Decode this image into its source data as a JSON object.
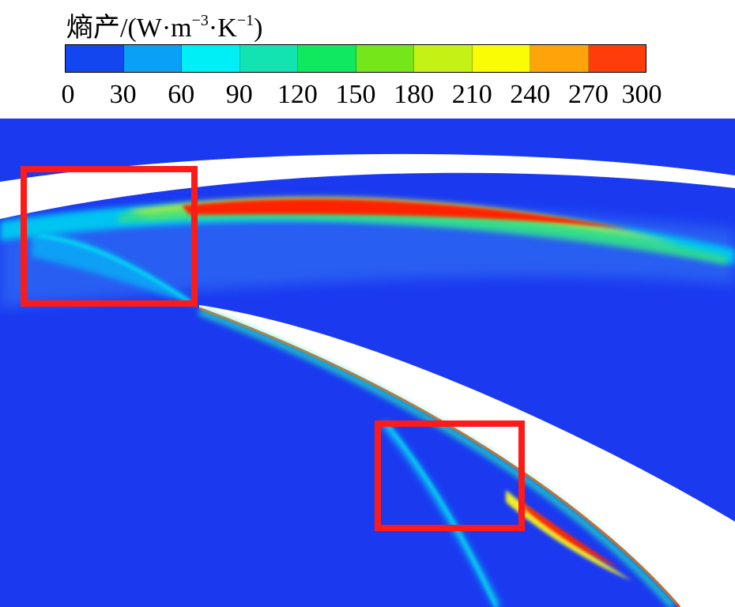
{
  "legend": {
    "title_main": "熵产/(W·m",
    "title_exp1": "−3",
    "title_mid": "·K",
    "title_exp2": "−1",
    "title_end": ")",
    "ticks": [
      "0",
      "30",
      "60",
      "90",
      "120",
      "150",
      "180",
      "210",
      "240",
      "270",
      "300"
    ],
    "colors": [
      "#1446f0",
      "#0aa0f5",
      "#00eef5",
      "#12e3b0",
      "#10e860",
      "#74e61a",
      "#c4f214",
      "#fafc06",
      "#ffa30a",
      "#ff3c0a"
    ]
  },
  "field_colors": {
    "background": "#1b3af0",
    "blade_white": "#ffffff",
    "highlight_box": "#ff1a1a"
  }
}
